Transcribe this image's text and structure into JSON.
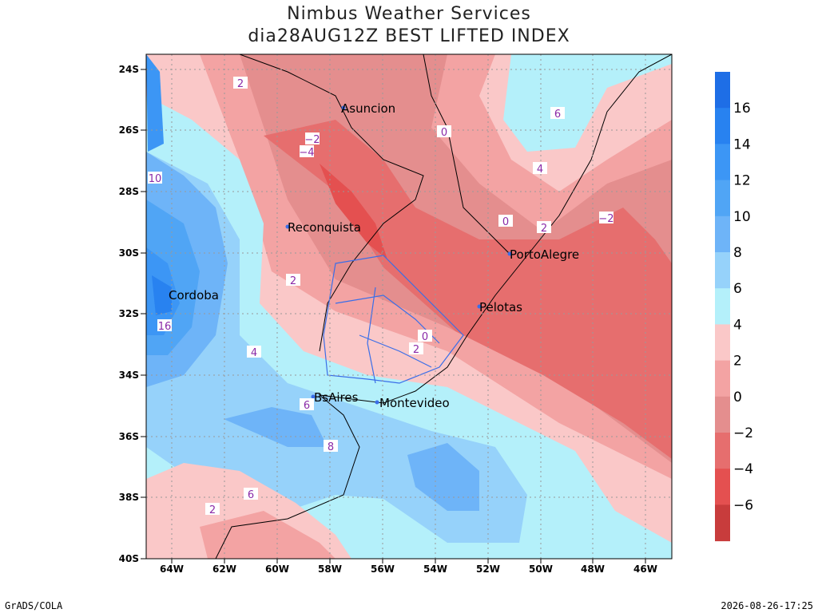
{
  "header": {
    "title": "Nimbus Weather Services",
    "subtitle": "dia28AUG12Z BEST LIFTED INDEX"
  },
  "map": {
    "lat_labels": [
      "24S",
      "26S",
      "28S",
      "30S",
      "32S",
      "34S",
      "36S",
      "38S",
      "40S"
    ],
    "lon_labels": [
      "64W",
      "62W",
      "60W",
      "58W",
      "56W",
      "54W",
      "52W",
      "50W",
      "48W",
      "46W"
    ],
    "cities": [
      "Asuncion",
      "Reconquista",
      "Cordoba",
      "PortoAlegre",
      "Pelotas",
      "BsAires",
      "Montevideo"
    ],
    "contour_labels": [
      "2",
      "−2",
      "−4",
      "0",
      "6",
      "4",
      "0",
      "2",
      "−2",
      "10",
      "2",
      "16",
      "4",
      "0",
      "2",
      "6",
      "8",
      "6",
      "2"
    ]
  },
  "colorbar": {
    "labels": [
      "16",
      "14",
      "12",
      "10",
      "8",
      "6",
      "4",
      "2",
      "0",
      "−2",
      "−4",
      "−6"
    ]
  },
  "footer": {
    "left": "GrADS/COLA",
    "right": "2026-08-26-17:25"
  }
}
